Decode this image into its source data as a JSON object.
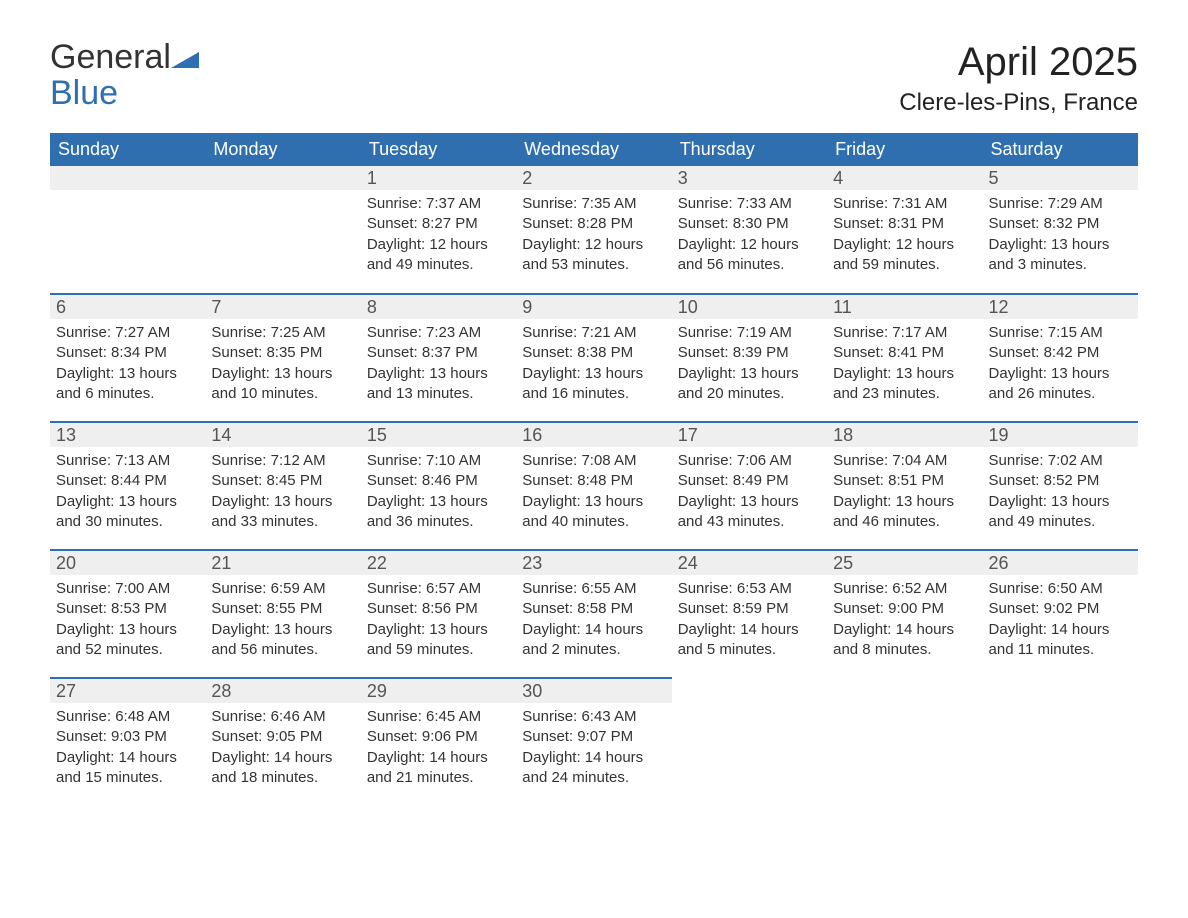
{
  "brand": {
    "line1": "General",
    "line2": "Blue"
  },
  "title": "April 2025",
  "subtitle": "Clere-les-Pins, France",
  "colors": {
    "header_bg": "#2f6fb0",
    "header_text": "#ffffff",
    "daynum_bg": "#efefef",
    "row_divider": "#2f6fb0",
    "body_text": "#333333",
    "brand_accent": "#2f6fb0",
    "page_bg": "#ffffff"
  },
  "weekdays": [
    "Sunday",
    "Monday",
    "Tuesday",
    "Wednesday",
    "Thursday",
    "Friday",
    "Saturday"
  ],
  "weeks": [
    [
      null,
      null,
      {
        "n": "1",
        "sunrise": "Sunrise: 7:37 AM",
        "sunset": "Sunset: 8:27 PM",
        "d1": "Daylight: 12 hours",
        "d2": "and 49 minutes."
      },
      {
        "n": "2",
        "sunrise": "Sunrise: 7:35 AM",
        "sunset": "Sunset: 8:28 PM",
        "d1": "Daylight: 12 hours",
        "d2": "and 53 minutes."
      },
      {
        "n": "3",
        "sunrise": "Sunrise: 7:33 AM",
        "sunset": "Sunset: 8:30 PM",
        "d1": "Daylight: 12 hours",
        "d2": "and 56 minutes."
      },
      {
        "n": "4",
        "sunrise": "Sunrise: 7:31 AM",
        "sunset": "Sunset: 8:31 PM",
        "d1": "Daylight: 12 hours",
        "d2": "and 59 minutes."
      },
      {
        "n": "5",
        "sunrise": "Sunrise: 7:29 AM",
        "sunset": "Sunset: 8:32 PM",
        "d1": "Daylight: 13 hours",
        "d2": "and 3 minutes."
      }
    ],
    [
      {
        "n": "6",
        "sunrise": "Sunrise: 7:27 AM",
        "sunset": "Sunset: 8:34 PM",
        "d1": "Daylight: 13 hours",
        "d2": "and 6 minutes."
      },
      {
        "n": "7",
        "sunrise": "Sunrise: 7:25 AM",
        "sunset": "Sunset: 8:35 PM",
        "d1": "Daylight: 13 hours",
        "d2": "and 10 minutes."
      },
      {
        "n": "8",
        "sunrise": "Sunrise: 7:23 AM",
        "sunset": "Sunset: 8:37 PM",
        "d1": "Daylight: 13 hours",
        "d2": "and 13 minutes."
      },
      {
        "n": "9",
        "sunrise": "Sunrise: 7:21 AM",
        "sunset": "Sunset: 8:38 PM",
        "d1": "Daylight: 13 hours",
        "d2": "and 16 minutes."
      },
      {
        "n": "10",
        "sunrise": "Sunrise: 7:19 AM",
        "sunset": "Sunset: 8:39 PM",
        "d1": "Daylight: 13 hours",
        "d2": "and 20 minutes."
      },
      {
        "n": "11",
        "sunrise": "Sunrise: 7:17 AM",
        "sunset": "Sunset: 8:41 PM",
        "d1": "Daylight: 13 hours",
        "d2": "and 23 minutes."
      },
      {
        "n": "12",
        "sunrise": "Sunrise: 7:15 AM",
        "sunset": "Sunset: 8:42 PM",
        "d1": "Daylight: 13 hours",
        "d2": "and 26 minutes."
      }
    ],
    [
      {
        "n": "13",
        "sunrise": "Sunrise: 7:13 AM",
        "sunset": "Sunset: 8:44 PM",
        "d1": "Daylight: 13 hours",
        "d2": "and 30 minutes."
      },
      {
        "n": "14",
        "sunrise": "Sunrise: 7:12 AM",
        "sunset": "Sunset: 8:45 PM",
        "d1": "Daylight: 13 hours",
        "d2": "and 33 minutes."
      },
      {
        "n": "15",
        "sunrise": "Sunrise: 7:10 AM",
        "sunset": "Sunset: 8:46 PM",
        "d1": "Daylight: 13 hours",
        "d2": "and 36 minutes."
      },
      {
        "n": "16",
        "sunrise": "Sunrise: 7:08 AM",
        "sunset": "Sunset: 8:48 PM",
        "d1": "Daylight: 13 hours",
        "d2": "and 40 minutes."
      },
      {
        "n": "17",
        "sunrise": "Sunrise: 7:06 AM",
        "sunset": "Sunset: 8:49 PM",
        "d1": "Daylight: 13 hours",
        "d2": "and 43 minutes."
      },
      {
        "n": "18",
        "sunrise": "Sunrise: 7:04 AM",
        "sunset": "Sunset: 8:51 PM",
        "d1": "Daylight: 13 hours",
        "d2": "and 46 minutes."
      },
      {
        "n": "19",
        "sunrise": "Sunrise: 7:02 AM",
        "sunset": "Sunset: 8:52 PM",
        "d1": "Daylight: 13 hours",
        "d2": "and 49 minutes."
      }
    ],
    [
      {
        "n": "20",
        "sunrise": "Sunrise: 7:00 AM",
        "sunset": "Sunset: 8:53 PM",
        "d1": "Daylight: 13 hours",
        "d2": "and 52 minutes."
      },
      {
        "n": "21",
        "sunrise": "Sunrise: 6:59 AM",
        "sunset": "Sunset: 8:55 PM",
        "d1": "Daylight: 13 hours",
        "d2": "and 56 minutes."
      },
      {
        "n": "22",
        "sunrise": "Sunrise: 6:57 AM",
        "sunset": "Sunset: 8:56 PM",
        "d1": "Daylight: 13 hours",
        "d2": "and 59 minutes."
      },
      {
        "n": "23",
        "sunrise": "Sunrise: 6:55 AM",
        "sunset": "Sunset: 8:58 PM",
        "d1": "Daylight: 14 hours",
        "d2": "and 2 minutes."
      },
      {
        "n": "24",
        "sunrise": "Sunrise: 6:53 AM",
        "sunset": "Sunset: 8:59 PM",
        "d1": "Daylight: 14 hours",
        "d2": "and 5 minutes."
      },
      {
        "n": "25",
        "sunrise": "Sunrise: 6:52 AM",
        "sunset": "Sunset: 9:00 PM",
        "d1": "Daylight: 14 hours",
        "d2": "and 8 minutes."
      },
      {
        "n": "26",
        "sunrise": "Sunrise: 6:50 AM",
        "sunset": "Sunset: 9:02 PM",
        "d1": "Daylight: 14 hours",
        "d2": "and 11 minutes."
      }
    ],
    [
      {
        "n": "27",
        "sunrise": "Sunrise: 6:48 AM",
        "sunset": "Sunset: 9:03 PM",
        "d1": "Daylight: 14 hours",
        "d2": "and 15 minutes."
      },
      {
        "n": "28",
        "sunrise": "Sunrise: 6:46 AM",
        "sunset": "Sunset: 9:05 PM",
        "d1": "Daylight: 14 hours",
        "d2": "and 18 minutes."
      },
      {
        "n": "29",
        "sunrise": "Sunrise: 6:45 AM",
        "sunset": "Sunset: 9:06 PM",
        "d1": "Daylight: 14 hours",
        "d2": "and 21 minutes."
      },
      {
        "n": "30",
        "sunrise": "Sunrise: 6:43 AM",
        "sunset": "Sunset: 9:07 PM",
        "d1": "Daylight: 14 hours",
        "d2": "and 24 minutes."
      },
      null,
      null,
      null
    ]
  ]
}
